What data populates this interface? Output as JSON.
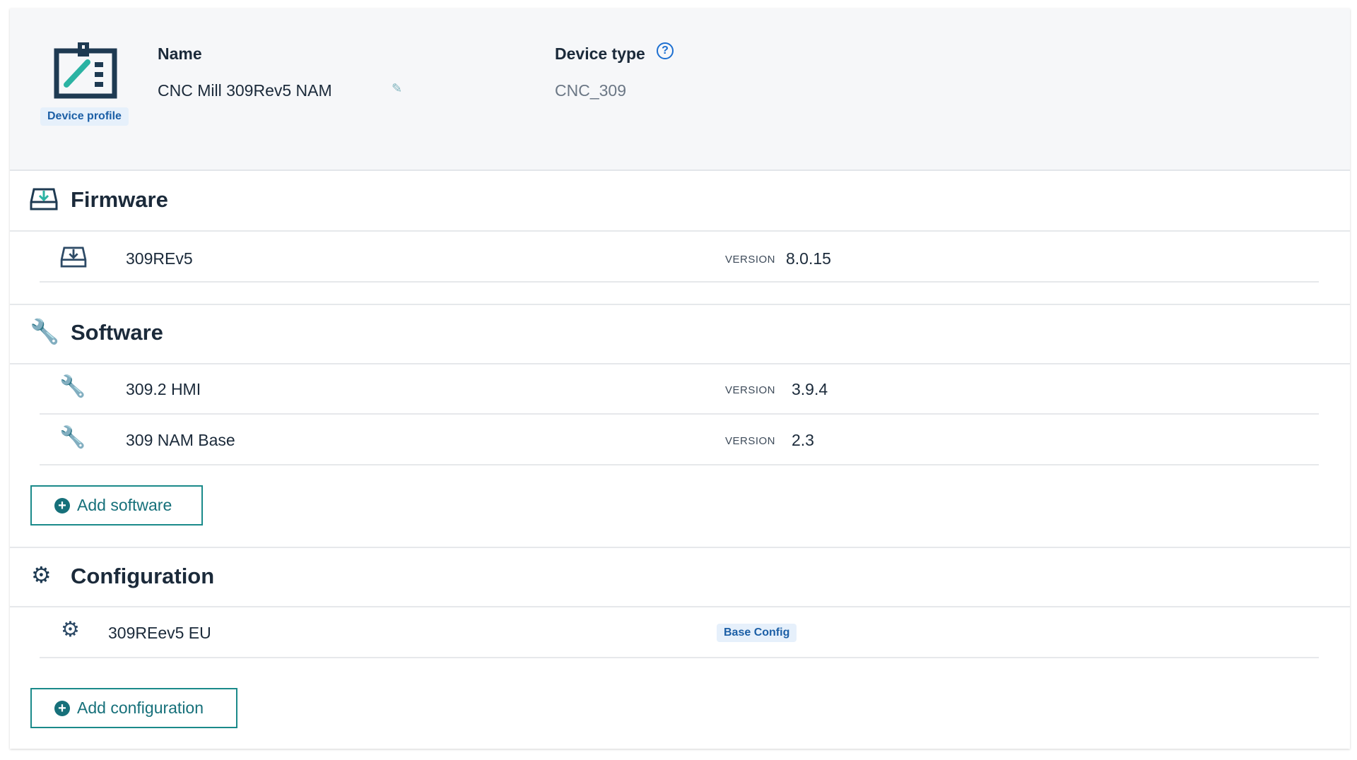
{
  "header": {
    "badge": "Device profile",
    "name_label": "Name",
    "name_value": "CNC Mill 309Rev5 NAM",
    "device_type_label": "Device type",
    "device_type_value": "CNC_309"
  },
  "firmware": {
    "title": "Firmware",
    "items": [
      {
        "name": "309REv5",
        "version_label": "VERSION",
        "version": "8.0.15"
      }
    ]
  },
  "software": {
    "title": "Software",
    "items": [
      {
        "name": "309.2 HMI",
        "version_label": "VERSION",
        "version": "3.9.4"
      },
      {
        "name": "309 NAM Base",
        "version_label": "VERSION",
        "version": "2.3"
      }
    ],
    "add_label": "Add software"
  },
  "configuration": {
    "title": "Configuration",
    "items": [
      {
        "name": "309REev5 EU",
        "badge": "Base Config"
      }
    ],
    "add_label": "Add configuration"
  },
  "colors": {
    "accent": "#16707a",
    "icon_dark": "#1e3a52",
    "icon_teal": "#2bb3a3",
    "badge_blue": "#1c5fa6"
  }
}
